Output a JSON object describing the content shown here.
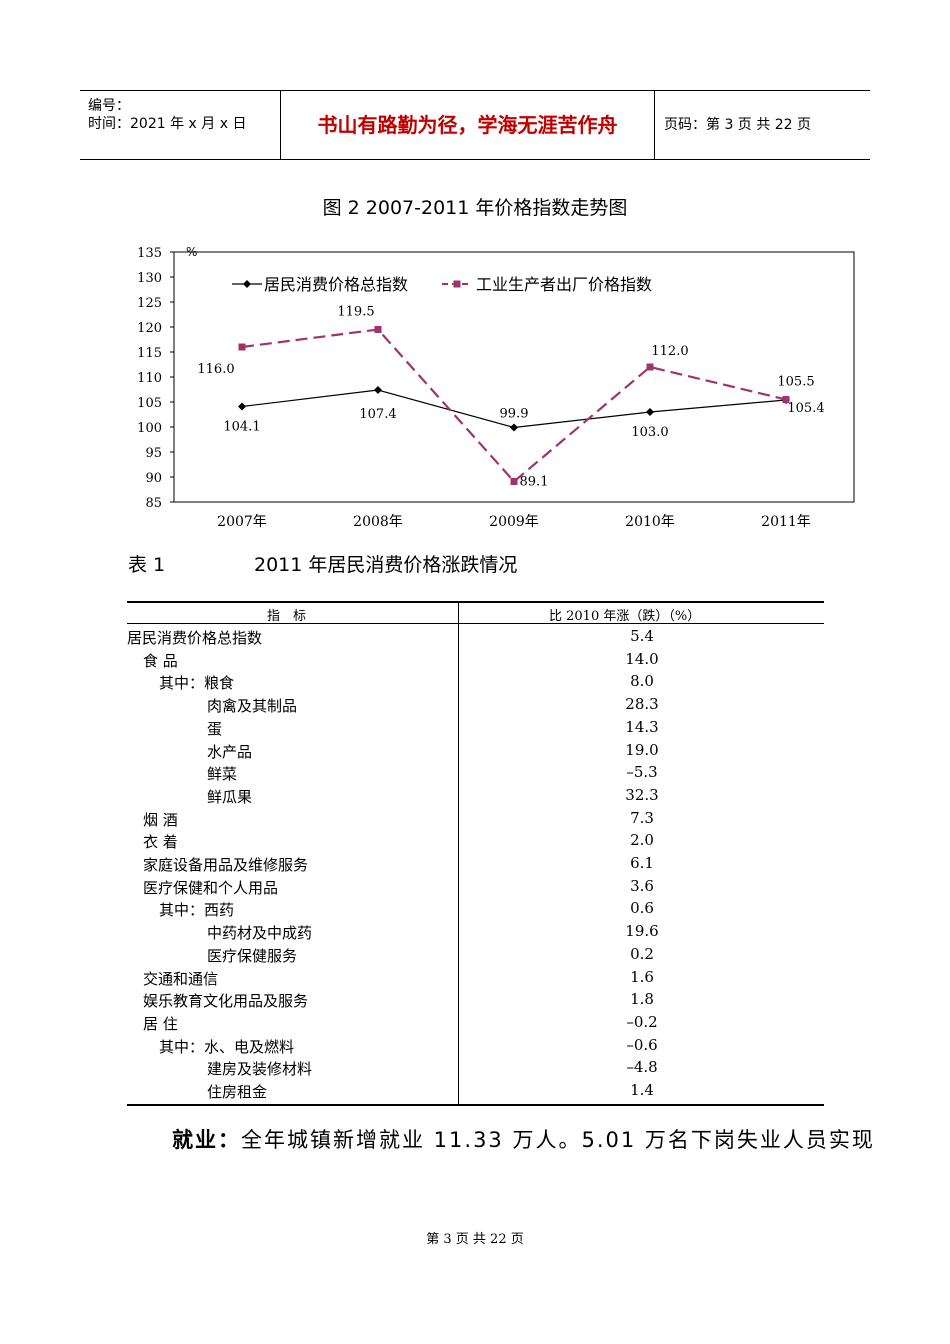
{
  "header": {
    "serial_label": "编号：",
    "time_label": "时间：2021 年 x 月 x 日",
    "motto": "书山有路勤为径，学海无涯苦作舟",
    "page_label": "页码：第 3 页  共 22 页"
  },
  "figure": {
    "title": "图 2  2007-2011 年价格指数走势图"
  },
  "chart_data": {
    "type": "line",
    "title": "图 2  2007-2011 年价格指数走势图",
    "unit": "%",
    "categories": [
      "2007年",
      "2008年",
      "2009年",
      "2010年",
      "2011年"
    ],
    "ylim": [
      85,
      135
    ],
    "yticks": [
      85,
      90,
      95,
      100,
      105,
      110,
      115,
      120,
      125,
      130,
      135
    ],
    "grid": false,
    "legend_position": "top-left",
    "series": [
      {
        "name": "居民消费价格总指数",
        "values": [
          104.1,
          107.4,
          99.9,
          103.0,
          105.4
        ],
        "labels": [
          "104.1",
          "107.4",
          "99.9",
          "103.0",
          "105.4"
        ],
        "color": "#000000",
        "marker": "diamond",
        "dash": false
      },
      {
        "name": "工业生产者出厂价格指数",
        "values": [
          116.0,
          119.5,
          89.1,
          112.0,
          105.5
        ],
        "labels": [
          "116.0",
          "119.5",
          "89.1",
          "112.0",
          "105.5"
        ],
        "color": "#a0336b",
        "marker": "square",
        "dash": true
      }
    ]
  },
  "table": {
    "label": "表 1",
    "title": "2011 年居民消费价格涨跌情况",
    "col_indicator": "指　标",
    "col_change": "比 2010 年涨（跌）（%）",
    "rows": [
      {
        "name": "居民消费价格总指数",
        "value": "5.4",
        "level": 0
      },
      {
        "name": "食  品",
        "value": "14.0",
        "level": 1
      },
      {
        "name": "其中：粮食",
        "value": "8.0",
        "level": 2
      },
      {
        "name": "肉禽及其制品",
        "value": "28.3",
        "level": 3
      },
      {
        "name": "蛋",
        "value": "14.3",
        "level": 3
      },
      {
        "name": "水产品",
        "value": "19.0",
        "level": 3
      },
      {
        "name": "鲜菜",
        "value": "–5.3",
        "level": 3
      },
      {
        "name": "鲜瓜果",
        "value": "32.3",
        "level": 3
      },
      {
        "name": "烟  酒",
        "value": "7.3",
        "level": 1
      },
      {
        "name": "衣  着",
        "value": "2.0",
        "level": 1
      },
      {
        "name": "家庭设备用品及维修服务",
        "value": "6.1",
        "level": 1
      },
      {
        "name": "医疗保健和个人用品",
        "value": "3.6",
        "level": 1
      },
      {
        "name": "其中：西药",
        "value": "0.6",
        "level": 2
      },
      {
        "name": "中药材及中成药",
        "value": "19.6",
        "level": 3
      },
      {
        "name": "医疗保健服务",
        "value": "0.2",
        "level": 3
      },
      {
        "name": "交通和通信",
        "value": "1.6",
        "level": 1
      },
      {
        "name": "娱乐教育文化用品及服务",
        "value": "1.8",
        "level": 1
      },
      {
        "name": "居  住",
        "value": "–0.2",
        "level": 1
      },
      {
        "name": "其中：水、电及燃料",
        "value": "–0.6",
        "level": 2
      },
      {
        "name": "建房及装修材料",
        "value": "–4.8",
        "level": 3
      },
      {
        "name": "住房租金",
        "value": "1.4",
        "level": 3
      }
    ]
  },
  "body": {
    "lead": "就业：",
    "text": "全年城镇新增就业 11.33 万人。5.01 万名下岗失业人员实现"
  },
  "footer": {
    "page": "第 3 页 共 22 页"
  }
}
